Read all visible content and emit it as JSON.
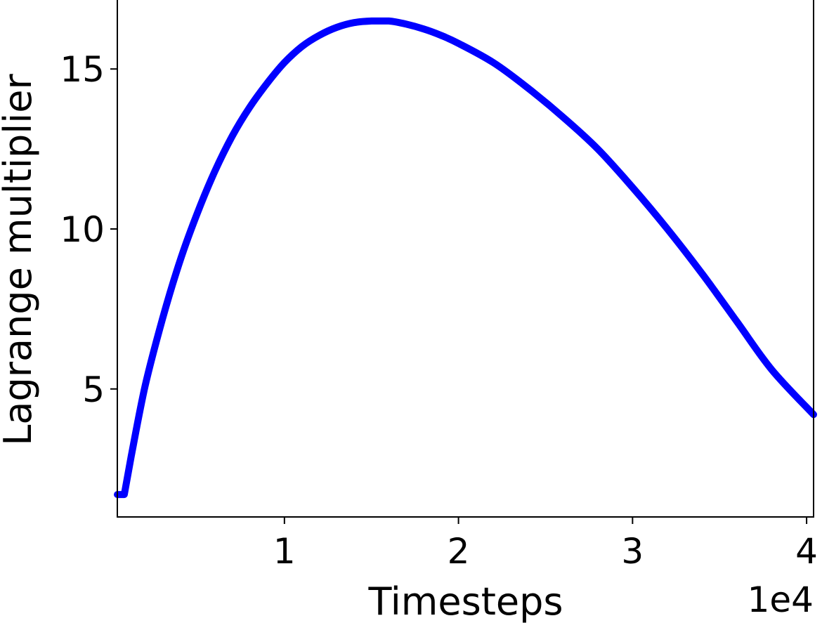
{
  "chart_data": {
    "type": "line",
    "title": "",
    "xlabel": "Timesteps",
    "ylabel": "Lagrange multiplier",
    "x_offset_label": "1e4",
    "xlim": [
      0.04,
      4.04
    ],
    "ylim": [
      1.0,
      17.2
    ],
    "xticks": [
      {
        "value": 1,
        "label": "1"
      },
      {
        "value": 2,
        "label": "2"
      },
      {
        "value": 3,
        "label": "3"
      },
      {
        "value": 4,
        "label": "4"
      }
    ],
    "yticks": [
      {
        "value": 5,
        "label": "5"
      },
      {
        "value": 10,
        "label": "10"
      },
      {
        "value": 15,
        "label": "15"
      }
    ],
    "grid": false,
    "legend": "none",
    "series": [
      {
        "color": "#0000ff",
        "x": [
          0.04,
          0.08,
          0.12,
          0.2,
          0.3,
          0.4,
          0.5,
          0.6,
          0.7,
          0.8,
          0.9,
          1.0,
          1.1,
          1.2,
          1.3,
          1.4,
          1.5,
          1.6,
          1.7,
          1.8,
          1.9,
          2.0,
          2.2,
          2.4,
          2.6,
          2.8,
          3.0,
          3.2,
          3.4,
          3.6,
          3.8,
          4.04
        ],
        "y": [
          1.7,
          1.7,
          2.9,
          5.1,
          7.2,
          9.0,
          10.5,
          11.8,
          12.9,
          13.8,
          14.55,
          15.2,
          15.7,
          16.05,
          16.3,
          16.45,
          16.5,
          16.5,
          16.4,
          16.25,
          16.05,
          15.8,
          15.2,
          14.4,
          13.5,
          12.5,
          11.3,
          10.0,
          8.6,
          7.1,
          5.6,
          4.2
        ]
      }
    ]
  }
}
